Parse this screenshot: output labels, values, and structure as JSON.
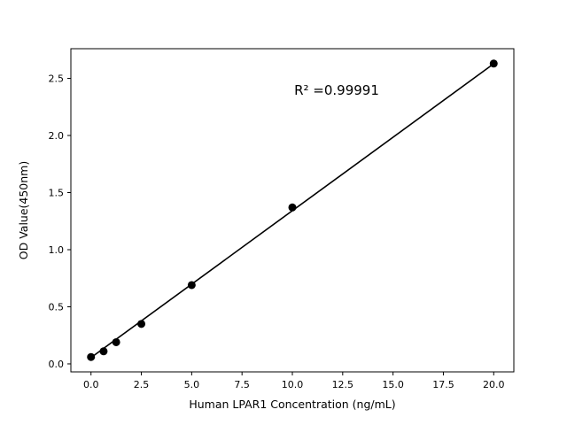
{
  "chart_data": {
    "type": "scatter",
    "title": "",
    "xlabel": "Human LPAR1 Concentration (ng/mL)",
    "ylabel": "OD Value(450nm)",
    "annotation": "R² =0.99991",
    "x": [
      0,
      0.625,
      1.25,
      2.5,
      5,
      10,
      20
    ],
    "y": [
      0.06,
      0.11,
      0.19,
      0.35,
      0.69,
      1.37,
      2.63
    ],
    "fit_line": {
      "x1": 0,
      "y1": 0.055,
      "x2": 20,
      "y2": 2.628
    },
    "xlim": [
      -1,
      21
    ],
    "ylim": [
      -0.07,
      2.76
    ],
    "xticks": [
      0.0,
      2.5,
      5.0,
      7.5,
      10.0,
      12.5,
      15.0,
      17.5,
      20.0
    ],
    "yticks": [
      0.0,
      0.5,
      1.0,
      1.5,
      2.0,
      2.5
    ],
    "tick_decimals": 1,
    "marker_color": "#000000",
    "line_color": "#000000",
    "background": "#ffffff",
    "grid": false,
    "legend": "none"
  }
}
